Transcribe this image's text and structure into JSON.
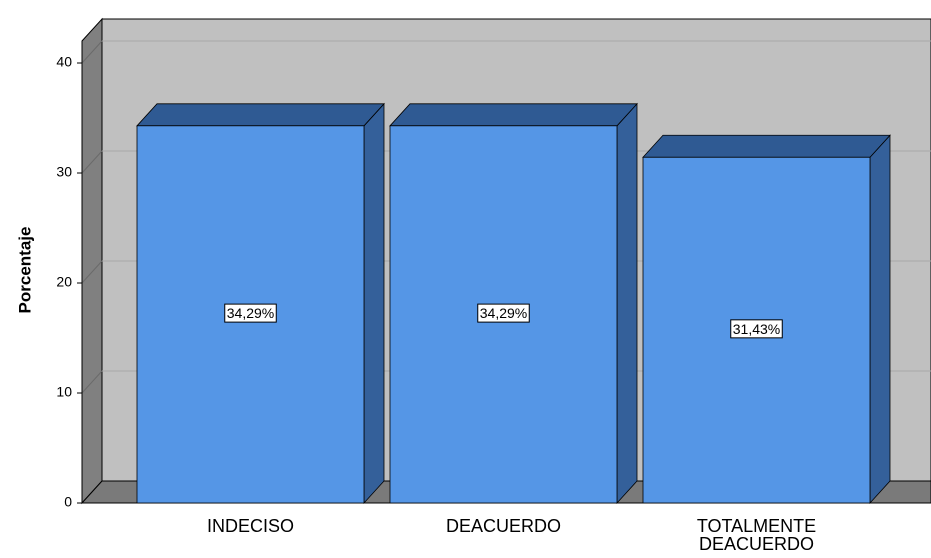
{
  "chart_data": {
    "type": "bar3d",
    "y_label": "Porcentaje",
    "categories": [
      "INDECISO",
      "DEACUERDO",
      "TOTALMENTE DEACUERDO"
    ],
    "values": [
      34.29,
      34.29,
      31.43
    ],
    "value_labels": [
      "34,29%",
      "34,29%",
      "31,43%"
    ],
    "color": "#5596e6",
    "ylim": [
      0,
      42
    ],
    "yticks": [
      0,
      10,
      20,
      30,
      40
    ],
    "grid": true
  }
}
